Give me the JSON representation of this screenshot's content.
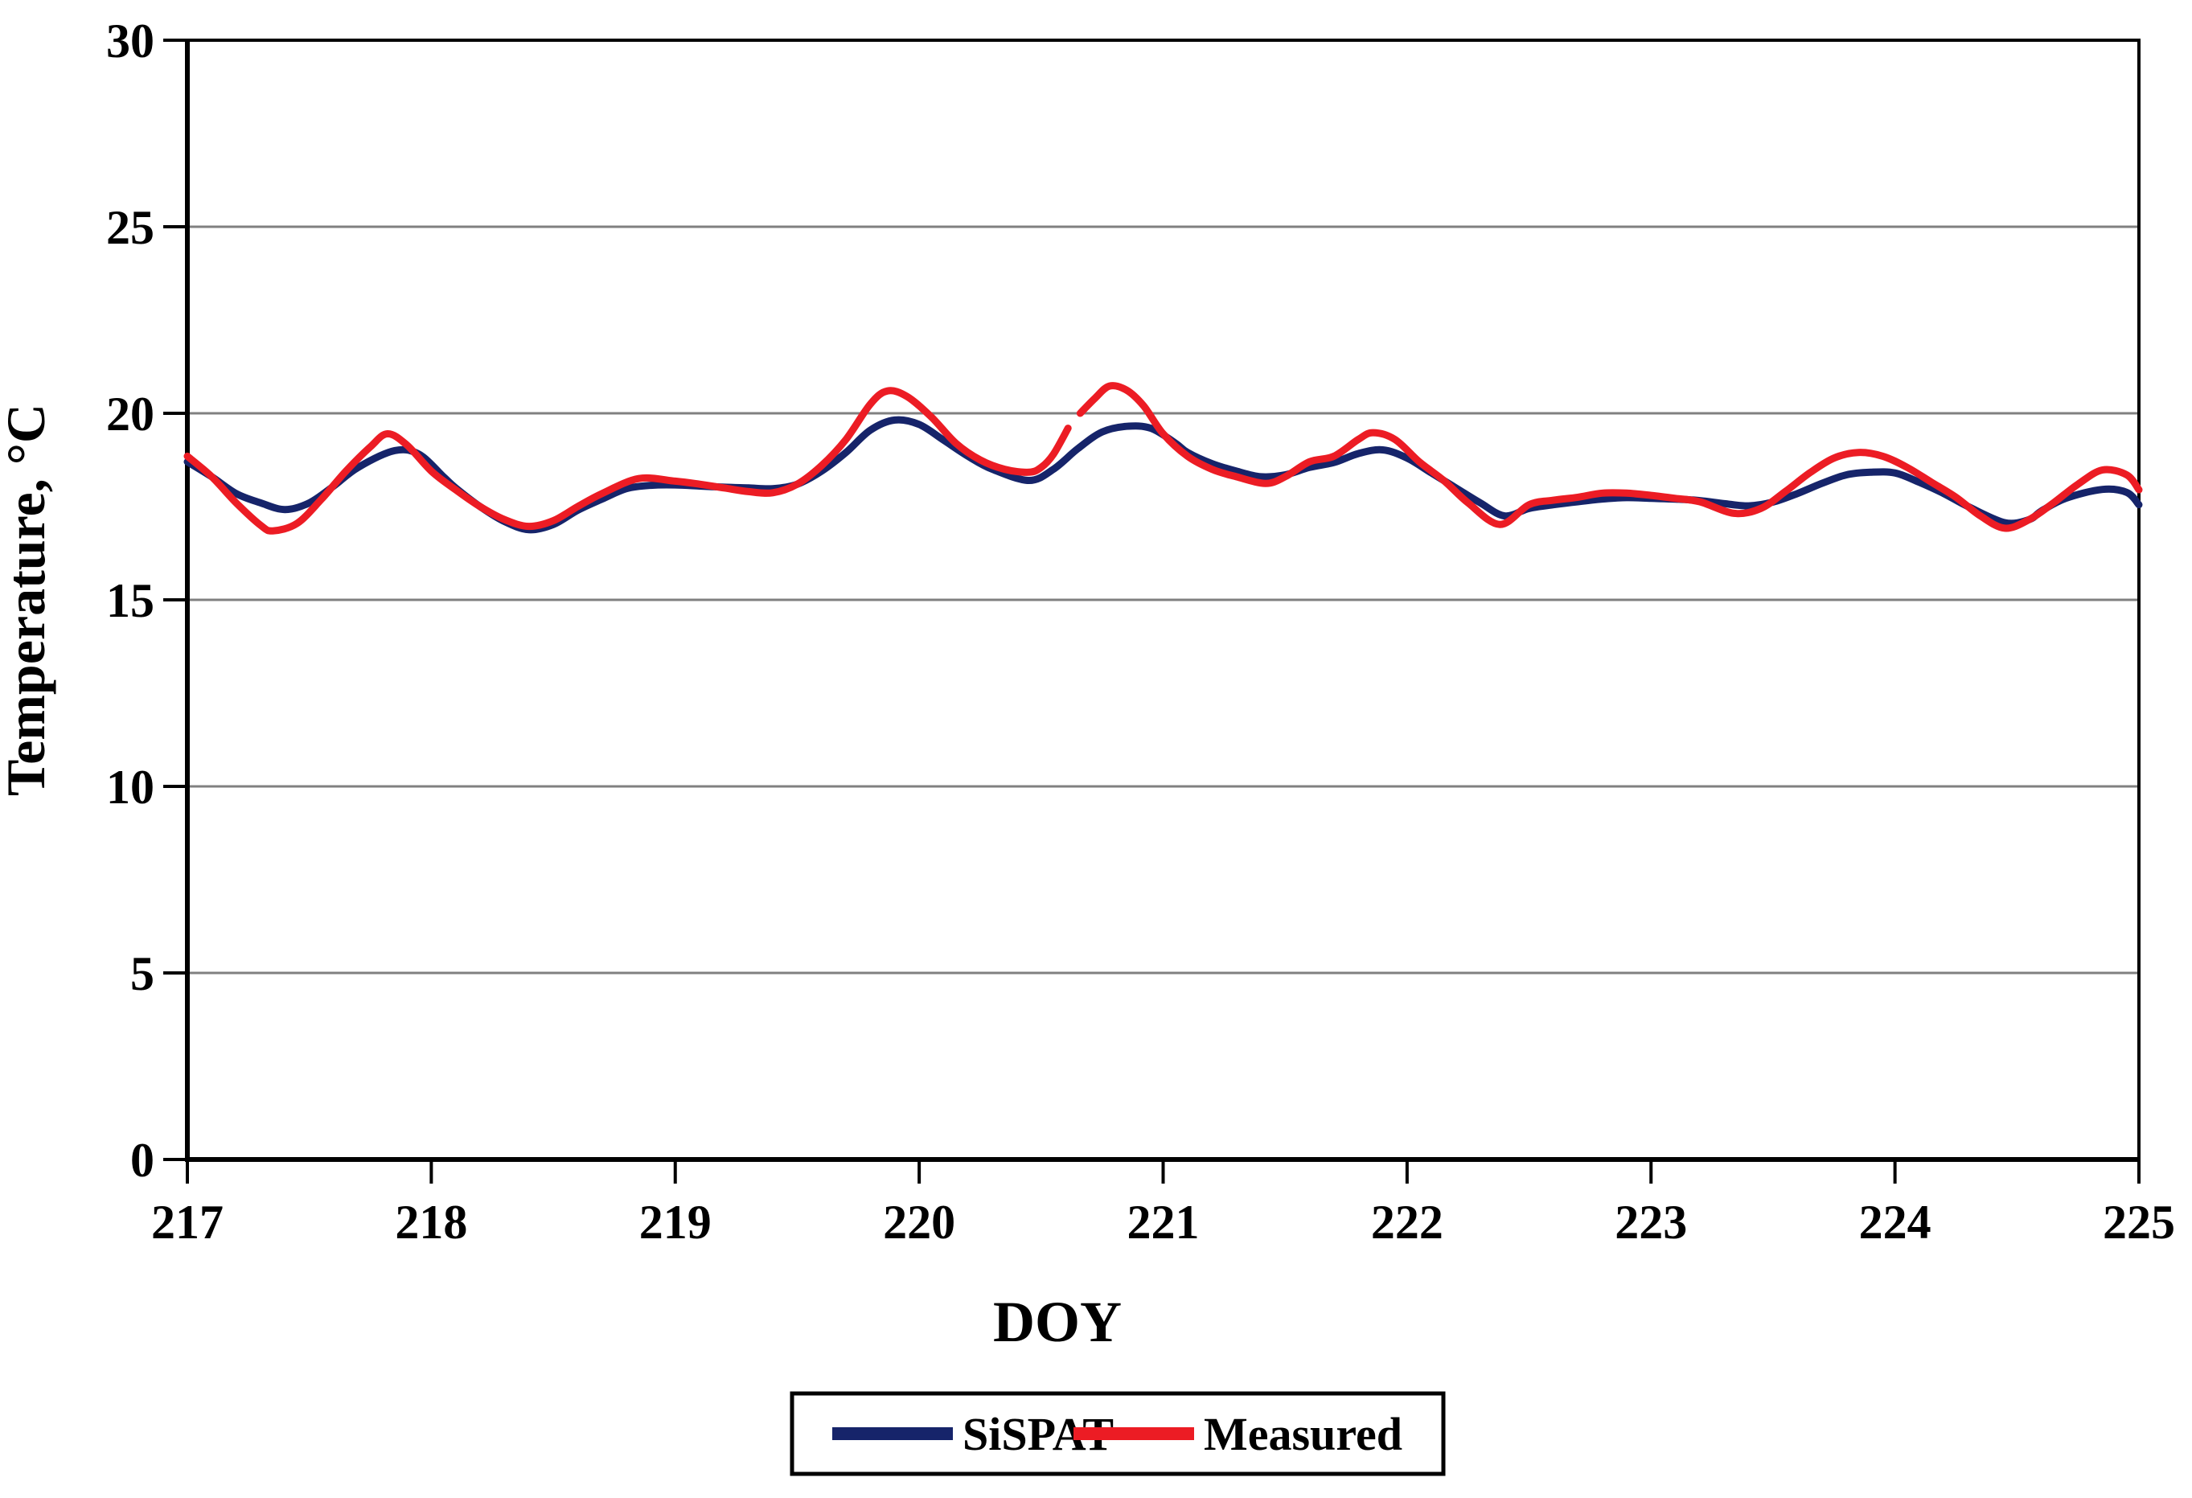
{
  "chart_data": {
    "type": "line",
    "title": "",
    "xlabel": "DOY",
    "ylabel": "Temperature, °C",
    "xlim": [
      217,
      225
    ],
    "ylim": [
      0,
      30
    ],
    "x_ticks": [
      "217",
      "218",
      "219",
      "220",
      "221",
      "222",
      "223",
      "224",
      "225"
    ],
    "x_tick_values": [
      217,
      218,
      219,
      220,
      221,
      222,
      223,
      224,
      225
    ],
    "y_ticks": [
      "0",
      "5",
      "10",
      "15",
      "20",
      "25",
      "30"
    ],
    "y_tick_values": [
      0,
      5,
      10,
      15,
      20,
      25,
      30
    ],
    "gridlines": {
      "horizontal_at": [
        5,
        10,
        15,
        20,
        25
      ],
      "color": "#808080"
    },
    "legend_position": "bottom-center-boxed",
    "axis_color": "#000000",
    "background_color": "#ffffff",
    "series": [
      {
        "name": "SiSPAT",
        "color": "#16246a",
        "points": [
          [
            217.0,
            18.7
          ],
          [
            217.1,
            18.3
          ],
          [
            217.2,
            17.85
          ],
          [
            217.3,
            17.6
          ],
          [
            217.4,
            17.42
          ],
          [
            217.5,
            17.6
          ],
          [
            217.6,
            18.05
          ],
          [
            217.7,
            18.55
          ],
          [
            217.85,
            19.0
          ],
          [
            217.95,
            18.9
          ],
          [
            218.05,
            18.3
          ],
          [
            218.1,
            18.0
          ],
          [
            218.2,
            17.5
          ],
          [
            218.3,
            17.1
          ],
          [
            218.4,
            16.88
          ],
          [
            218.5,
            17.02
          ],
          [
            218.6,
            17.4
          ],
          [
            218.7,
            17.7
          ],
          [
            218.8,
            17.98
          ],
          [
            218.9,
            18.07
          ],
          [
            219.0,
            18.08
          ],
          [
            219.1,
            18.05
          ],
          [
            219.2,
            18.02
          ],
          [
            219.3,
            18.0
          ],
          [
            219.4,
            17.98
          ],
          [
            219.5,
            18.1
          ],
          [
            219.6,
            18.45
          ],
          [
            219.7,
            18.95
          ],
          [
            219.8,
            19.55
          ],
          [
            219.9,
            19.82
          ],
          [
            220.0,
            19.7
          ],
          [
            220.1,
            19.28
          ],
          [
            220.2,
            18.85
          ],
          [
            220.3,
            18.5
          ],
          [
            220.45,
            18.2
          ],
          [
            220.55,
            18.5
          ],
          [
            220.65,
            19.05
          ],
          [
            220.75,
            19.5
          ],
          [
            220.85,
            19.65
          ],
          [
            220.95,
            19.6
          ],
          [
            221.05,
            19.2
          ],
          [
            221.1,
            18.95
          ],
          [
            221.2,
            18.65
          ],
          [
            221.3,
            18.45
          ],
          [
            221.4,
            18.3
          ],
          [
            221.5,
            18.35
          ],
          [
            221.6,
            18.55
          ],
          [
            221.7,
            18.68
          ],
          [
            221.8,
            18.92
          ],
          [
            221.9,
            19.02
          ],
          [
            222.0,
            18.8
          ],
          [
            222.1,
            18.4
          ],
          [
            222.2,
            18.0
          ],
          [
            222.3,
            17.6
          ],
          [
            222.4,
            17.25
          ],
          [
            222.5,
            17.45
          ],
          [
            222.6,
            17.55
          ],
          [
            222.7,
            17.63
          ],
          [
            222.8,
            17.7
          ],
          [
            222.9,
            17.74
          ],
          [
            223.0,
            17.72
          ],
          [
            223.1,
            17.7
          ],
          [
            223.2,
            17.66
          ],
          [
            223.3,
            17.58
          ],
          [
            223.4,
            17.52
          ],
          [
            223.5,
            17.62
          ],
          [
            223.6,
            17.85
          ],
          [
            223.7,
            18.12
          ],
          [
            223.8,
            18.35
          ],
          [
            223.9,
            18.42
          ],
          [
            224.0,
            18.4
          ],
          [
            224.1,
            18.15
          ],
          [
            224.2,
            17.85
          ],
          [
            224.3,
            17.5
          ],
          [
            224.45,
            17.07
          ],
          [
            224.55,
            17.15
          ],
          [
            224.6,
            17.38
          ],
          [
            224.7,
            17.72
          ],
          [
            224.85,
            17.96
          ],
          [
            224.95,
            17.88
          ],
          [
            225.0,
            17.55
          ]
        ]
      },
      {
        "name": "Measured",
        "color": "#ec1c24",
        "points": [
          [
            217.0,
            18.85
          ],
          [
            217.1,
            18.3
          ],
          [
            217.2,
            17.6
          ],
          [
            217.3,
            17.0
          ],
          [
            217.35,
            16.85
          ],
          [
            217.45,
            17.05
          ],
          [
            217.55,
            17.7
          ],
          [
            217.65,
            18.45
          ],
          [
            217.75,
            19.1
          ],
          [
            217.82,
            19.45
          ],
          [
            217.9,
            19.15
          ],
          [
            218.0,
            18.45
          ],
          [
            218.1,
            17.95
          ],
          [
            218.2,
            17.5
          ],
          [
            218.3,
            17.15
          ],
          [
            218.4,
            16.97
          ],
          [
            218.5,
            17.12
          ],
          [
            218.6,
            17.5
          ],
          [
            218.7,
            17.85
          ],
          [
            218.85,
            18.25
          ],
          [
            219.0,
            18.18
          ],
          [
            219.1,
            18.1
          ],
          [
            219.2,
            18.0
          ],
          [
            219.3,
            17.9
          ],
          [
            219.4,
            17.87
          ],
          [
            219.5,
            18.1
          ],
          [
            219.6,
            18.6
          ],
          [
            219.7,
            19.3
          ],
          [
            219.8,
            20.25
          ],
          [
            219.87,
            20.6
          ],
          [
            219.95,
            20.45
          ],
          [
            220.05,
            19.9
          ],
          [
            220.15,
            19.2
          ],
          [
            220.25,
            18.75
          ],
          [
            220.35,
            18.5
          ],
          [
            220.45,
            18.42
          ],
          [
            220.5,
            18.55
          ],
          [
            220.55,
            18.9
          ],
          [
            220.61,
            19.6
          ],
          null,
          [
            220.66,
            20.0
          ],
          [
            220.72,
            20.4
          ],
          [
            220.78,
            20.73
          ],
          [
            220.85,
            20.62
          ],
          [
            220.92,
            20.2
          ],
          [
            221.0,
            19.45
          ],
          [
            221.1,
            18.85
          ],
          [
            221.2,
            18.5
          ],
          [
            221.3,
            18.3
          ],
          [
            221.42,
            18.12
          ],
          [
            221.5,
            18.3
          ],
          [
            221.6,
            18.7
          ],
          [
            221.7,
            18.85
          ],
          [
            221.8,
            19.3
          ],
          [
            221.86,
            19.48
          ],
          [
            221.95,
            19.3
          ],
          [
            222.05,
            18.7
          ],
          [
            222.15,
            18.2
          ],
          [
            222.25,
            17.6
          ],
          [
            222.38,
            17.02
          ],
          [
            222.5,
            17.55
          ],
          [
            222.6,
            17.67
          ],
          [
            222.7,
            17.75
          ],
          [
            222.8,
            17.86
          ],
          [
            222.9,
            17.86
          ],
          [
            223.0,
            17.8
          ],
          [
            223.1,
            17.72
          ],
          [
            223.2,
            17.63
          ],
          [
            223.34,
            17.32
          ],
          [
            223.45,
            17.45
          ],
          [
            223.55,
            17.9
          ],
          [
            223.65,
            18.4
          ],
          [
            223.75,
            18.8
          ],
          [
            223.85,
            18.95
          ],
          [
            223.95,
            18.85
          ],
          [
            224.05,
            18.55
          ],
          [
            224.15,
            18.15
          ],
          [
            224.25,
            17.75
          ],
          [
            224.35,
            17.25
          ],
          [
            224.45,
            16.92
          ],
          [
            224.55,
            17.15
          ],
          [
            224.65,
            17.6
          ],
          [
            224.75,
            18.1
          ],
          [
            224.85,
            18.48
          ],
          [
            224.95,
            18.35
          ],
          [
            225.0,
            17.95
          ]
        ]
      }
    ]
  },
  "legend": {
    "items": [
      {
        "label": "SiSPAT",
        "color": "#16246a"
      },
      {
        "label": "Measured",
        "color": "#ec1c24"
      }
    ]
  }
}
